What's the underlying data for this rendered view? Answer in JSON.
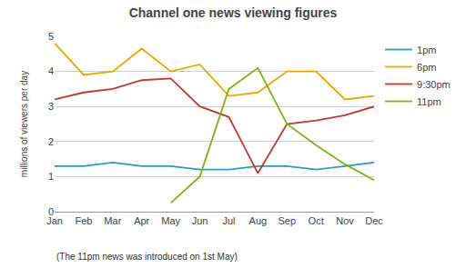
{
  "chart_data": {
    "type": "line",
    "title": "Channel one news viewing figures",
    "subtitle": "(The 11pm news was introduced on 1st May)",
    "ylabel": "millions of viewers per day",
    "categories": [
      "Jan",
      "Feb",
      "Mar",
      "Apr",
      "May",
      "Jun",
      "Jul",
      "Aug",
      "Sep",
      "Oct",
      "Nov",
      "Dec"
    ],
    "series": [
      {
        "name": "1pm",
        "color": "#2E9BB5",
        "values": [
          1.3,
          1.3,
          1.4,
          1.3,
          1.3,
          1.2,
          1.2,
          1.3,
          1.3,
          1.2,
          1.3,
          1.4
        ]
      },
      {
        "name": "6pm",
        "color": "#E8A800",
        "values": [
          4.8,
          3.9,
          4.0,
          4.65,
          4.0,
          4.2,
          3.3,
          3.4,
          4.0,
          4.0,
          3.2,
          3.3
        ]
      },
      {
        "name": "9:30pm",
        "color": "#C0392B",
        "values": [
          3.2,
          3.4,
          3.5,
          3.75,
          3.8,
          3.0,
          2.7,
          1.1,
          2.5,
          2.6,
          2.75,
          3.0
        ]
      },
      {
        "name": "11pm",
        "color": "#7CB518",
        "values": [
          null,
          null,
          null,
          null,
          0.25,
          1.0,
          3.5,
          4.1,
          2.5,
          1.9,
          1.35,
          0.9
        ]
      }
    ],
    "ylim": [
      0,
      5
    ],
    "yticks": [
      0,
      1,
      2,
      3,
      4,
      5
    ],
    "grid": true,
    "legend": "right"
  }
}
